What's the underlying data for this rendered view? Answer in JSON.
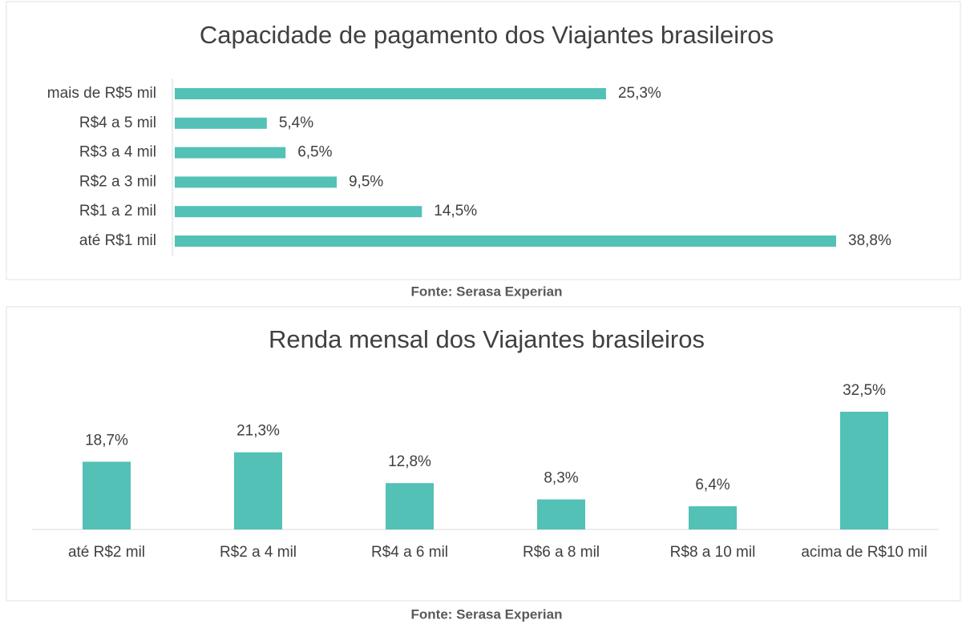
{
  "chart_data": [
    {
      "type": "bar",
      "orientation": "horizontal",
      "title": "Capacidade de pagamento dos Viajantes brasileiros",
      "categories": [
        "mais de R$5 mil",
        "R$4 a 5 mil",
        "R$3 a 4 mil",
        "R$2 a 3 mil",
        "R$1 a 2 mil",
        "até R$1 mil"
      ],
      "values": [
        25.3,
        5.4,
        6.5,
        9.5,
        14.5,
        38.8
      ],
      "value_labels": [
        "25,3%",
        "5,4%",
        "6,5%",
        "9,5%",
        "14,5%",
        "38,8%"
      ],
      "color": "#53c1b6",
      "source": "Fonte: Serasa Experian"
    },
    {
      "type": "bar",
      "orientation": "vertical",
      "title": "Renda mensal dos Viajantes brasileiros",
      "categories": [
        "até R$2 mil",
        "R$2 a 4 mil",
        "R$4 a 6 mil",
        "R$6 a 8 mil",
        "R$8 a 10 mil",
        "acima de R$10 mil"
      ],
      "values": [
        18.7,
        21.3,
        12.8,
        8.3,
        6.4,
        32.5
      ],
      "value_labels": [
        "18,7%",
        "21,3%",
        "12,8%",
        "8,3%",
        "6,4%",
        "32,5%"
      ],
      "color": "#53c1b6",
      "source": "Fonte: Serasa Experian"
    }
  ]
}
